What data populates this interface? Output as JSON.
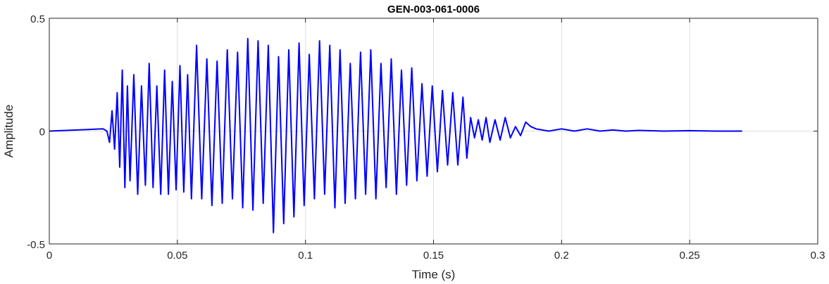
{
  "chart_data": {
    "type": "line",
    "title": "GEN-003-061-0006",
    "xlabel": "Time (s)",
    "ylabel": "Amplitude",
    "xlim": [
      0,
      0.3
    ],
    "ylim": [
      -0.5,
      0.5
    ],
    "xticks": [
      0,
      0.05,
      0.1,
      0.15,
      0.2,
      0.25,
      0.3
    ],
    "xtick_labels": [
      "0",
      "0.05",
      "0.1",
      "0.15",
      "0.2",
      "0.25",
      "0.3"
    ],
    "yticks": [
      -0.5,
      0,
      0.5
    ],
    "ytick_labels": [
      "-0.5",
      "0",
      "0.5"
    ],
    "grid": true,
    "line_color": "#0000ff",
    "series": [
      {
        "x": [
          0.0,
          0.021,
          0.0225,
          0.0235,
          0.0245,
          0.0255,
          0.0265,
          0.0275,
          0.0285,
          0.0295,
          0.0305,
          0.0315,
          0.033,
          0.0345,
          0.036,
          0.0375,
          0.039,
          0.0405,
          0.042,
          0.0435,
          0.045,
          0.0465,
          0.048,
          0.0495,
          0.051,
          0.0525,
          0.054,
          0.0555,
          0.0575,
          0.0595,
          0.0615,
          0.0635,
          0.0655,
          0.0675,
          0.0695,
          0.0715,
          0.0735,
          0.0755,
          0.0775,
          0.0795,
          0.0815,
          0.0835,
          0.0855,
          0.0875,
          0.0895,
          0.0915,
          0.0935,
          0.0955,
          0.0975,
          0.0995,
          0.1015,
          0.1035,
          0.1055,
          0.1075,
          0.1095,
          0.1115,
          0.1135,
          0.1155,
          0.1175,
          0.1195,
          0.1215,
          0.1235,
          0.1255,
          0.1275,
          0.1295,
          0.1315,
          0.1335,
          0.1355,
          0.1375,
          0.1395,
          0.1415,
          0.1435,
          0.1455,
          0.1475,
          0.1495,
          0.1515,
          0.1535,
          0.1555,
          0.1575,
          0.1595,
          0.1615,
          0.163,
          0.1645,
          0.166,
          0.1675,
          0.169,
          0.1705,
          0.172,
          0.174,
          0.176,
          0.178,
          0.18,
          0.182,
          0.184,
          0.186,
          0.188,
          0.19,
          0.195,
          0.2,
          0.205,
          0.21,
          0.215,
          0.22,
          0.225,
          0.23,
          0.24,
          0.25,
          0.26,
          0.2705
        ],
        "y": [
          0.0,
          0.01,
          0.0,
          -0.05,
          0.09,
          -0.08,
          0.17,
          -0.16,
          0.27,
          -0.25,
          0.2,
          -0.22,
          0.25,
          -0.28,
          0.2,
          -0.24,
          0.3,
          -0.25,
          0.2,
          -0.28,
          0.27,
          -0.28,
          0.22,
          -0.26,
          0.29,
          -0.27,
          0.25,
          -0.3,
          0.38,
          -0.3,
          0.32,
          -0.33,
          0.31,
          -0.32,
          0.36,
          -0.3,
          0.35,
          -0.34,
          0.41,
          -0.35,
          0.4,
          -0.32,
          0.38,
          -0.45,
          0.33,
          -0.41,
          0.36,
          -0.38,
          0.39,
          -0.33,
          0.34,
          -0.3,
          0.4,
          -0.28,
          0.38,
          -0.34,
          0.36,
          -0.32,
          0.3,
          -0.3,
          0.35,
          -0.28,
          0.36,
          -0.3,
          0.3,
          -0.25,
          0.32,
          -0.28,
          0.27,
          -0.24,
          0.28,
          -0.22,
          0.21,
          -0.2,
          0.2,
          -0.18,
          0.18,
          -0.15,
          0.17,
          -0.15,
          0.15,
          -0.12,
          0.06,
          -0.03,
          0.05,
          -0.04,
          0.06,
          -0.05,
          0.05,
          -0.04,
          0.06,
          -0.03,
          0.02,
          -0.02,
          0.04,
          0.02,
          0.01,
          0.0,
          0.01,
          0.0,
          0.01,
          0.0,
          0.005,
          0.0,
          0.003,
          0.0,
          0.002,
          0.0,
          0.0
        ]
      }
    ]
  }
}
